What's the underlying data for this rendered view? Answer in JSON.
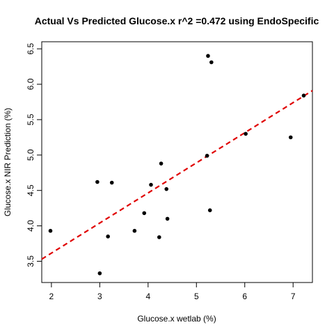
{
  "chart_data": {
    "type": "scatter",
    "title": "Actual Vs Predicted Glucose.x r^2 =0.472 using EndoSpecific",
    "xlabel": "Glucose.x wetlab (%)",
    "ylabel": "Glucose.x NIR Prediction (%)",
    "xlim": [
      1.8,
      7.4
    ],
    "ylim": [
      3.2,
      6.6
    ],
    "xticks": [
      2,
      3,
      4,
      5,
      6,
      7
    ],
    "yticks": [
      3.5,
      4.0,
      4.5,
      5.0,
      5.5,
      6.0,
      6.5
    ],
    "ytick_labels": [
      "3.5",
      "4.0",
      "4.5",
      "5.0",
      "5.5",
      "6.0",
      "6.5"
    ],
    "grid": false,
    "points": [
      {
        "x": 1.98,
        "y": 3.93
      },
      {
        "x": 2.95,
        "y": 4.62
      },
      {
        "x": 3.0,
        "y": 3.33
      },
      {
        "x": 3.17,
        "y": 3.85
      },
      {
        "x": 3.25,
        "y": 4.61
      },
      {
        "x": 3.72,
        "y": 3.93
      },
      {
        "x": 3.92,
        "y": 4.18
      },
      {
        "x": 4.06,
        "y": 4.58
      },
      {
        "x": 4.23,
        "y": 3.84
      },
      {
        "x": 4.27,
        "y": 4.88
      },
      {
        "x": 4.38,
        "y": 4.52
      },
      {
        "x": 4.4,
        "y": 4.1
      },
      {
        "x": 5.22,
        "y": 4.99
      },
      {
        "x": 5.24,
        "y": 6.4
      },
      {
        "x": 5.28,
        "y": 4.22
      },
      {
        "x": 5.31,
        "y": 6.31
      },
      {
        "x": 6.02,
        "y": 5.3
      },
      {
        "x": 6.95,
        "y": 5.25
      },
      {
        "x": 7.22,
        "y": 5.84
      }
    ],
    "fit_line": {
      "x": [
        1.8,
        7.4
      ],
      "y": [
        3.53,
        5.91
      ],
      "color": "#e00000",
      "style": "dashed"
    },
    "point_color": "#000000"
  }
}
